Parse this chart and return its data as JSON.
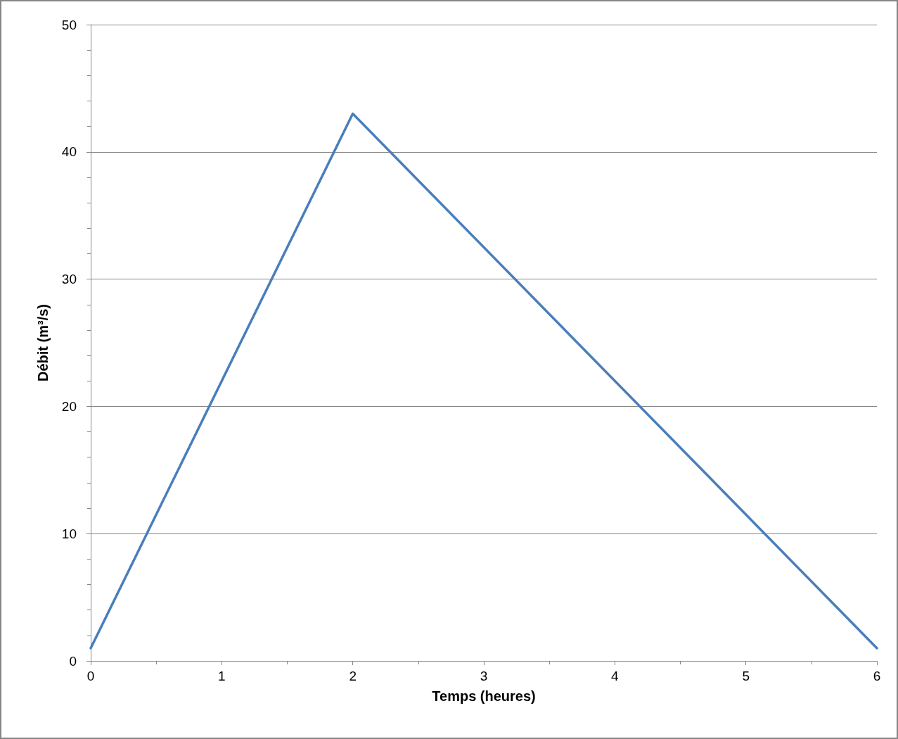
{
  "chart_data": {
    "type": "line",
    "xlabel": "Temps (heures)",
    "ylabel": "Débit (m³/s)",
    "x": [
      0,
      2,
      6
    ],
    "series": [
      {
        "color": "#4a7ebb",
        "values": [
          1,
          43,
          1
        ]
      }
    ],
    "xlim": [
      0,
      6
    ],
    "xticks": [
      0,
      1,
      2,
      3,
      4,
      5,
      6
    ],
    "ylim": [
      0,
      50
    ],
    "yticks": [
      0,
      10,
      20,
      30,
      40,
      50
    ],
    "grid": "y",
    "marker": "none",
    "line_style": "solid"
  }
}
